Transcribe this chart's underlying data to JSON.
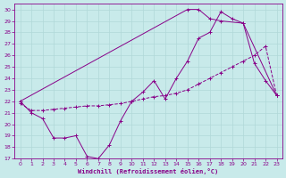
{
  "xlabel": "Windchill (Refroidissement éolien,°C)",
  "bg_color": "#c8eaea",
  "grid_color": "#b0d8d8",
  "line_color": "#880088",
  "xlim": [
    -0.5,
    23.5
  ],
  "ylim": [
    17,
    30.5
  ],
  "xticks": [
    0,
    1,
    2,
    3,
    4,
    5,
    6,
    7,
    8,
    9,
    10,
    11,
    12,
    13,
    14,
    15,
    16,
    17,
    18,
    19,
    20,
    21,
    22,
    23
  ],
  "yticks": [
    17,
    18,
    19,
    20,
    21,
    22,
    23,
    24,
    25,
    26,
    27,
    28,
    29,
    30
  ],
  "line1_x": [
    0,
    1,
    2,
    3,
    4,
    5,
    6,
    7,
    8,
    9,
    10,
    11,
    12,
    13,
    14,
    15,
    16,
    17,
    18,
    19,
    20,
    21,
    22,
    23
  ],
  "line1_y": [
    22,
    21,
    20.5,
    18.8,
    18.8,
    19.0,
    17.2,
    17.0,
    18.2,
    20.3,
    22.0,
    22.8,
    23.8,
    22.2,
    24.0,
    25.5,
    27.5,
    28.0,
    29.8,
    29.2,
    28.8,
    25.3,
    23.8,
    22.5
  ],
  "line2_x": [
    0,
    1,
    2,
    3,
    4,
    5,
    6,
    7,
    8,
    9,
    10,
    11,
    12,
    13,
    14,
    15,
    16,
    17,
    18,
    19,
    20,
    21,
    22,
    23
  ],
  "line2_y": [
    21.8,
    21.2,
    21.2,
    21.3,
    21.4,
    21.5,
    21.6,
    21.6,
    21.7,
    21.8,
    22.0,
    22.2,
    22.4,
    22.5,
    22.7,
    23.0,
    23.5,
    24.0,
    24.5,
    25.0,
    25.5,
    26.0,
    26.8,
    22.5
  ],
  "line3_x": [
    0,
    15,
    16,
    17,
    18,
    20,
    23
  ],
  "line3_y": [
    22,
    30.0,
    30.0,
    29.2,
    29.0,
    28.8,
    22.5
  ]
}
